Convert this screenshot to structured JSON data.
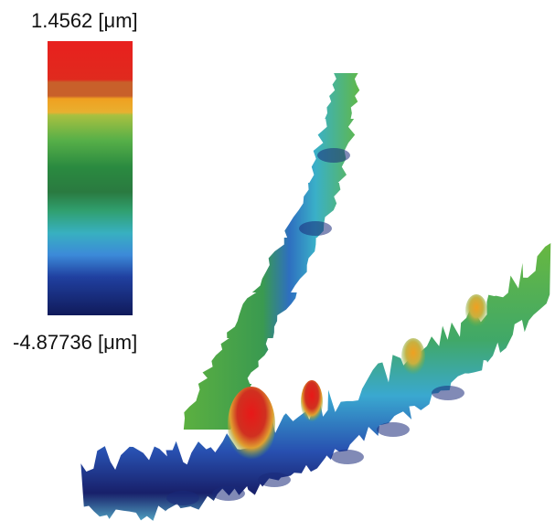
{
  "colorbar": {
    "max_label": "1.4562 [μm]",
    "min_label": "-4.87736 [μm]"
  }
}
